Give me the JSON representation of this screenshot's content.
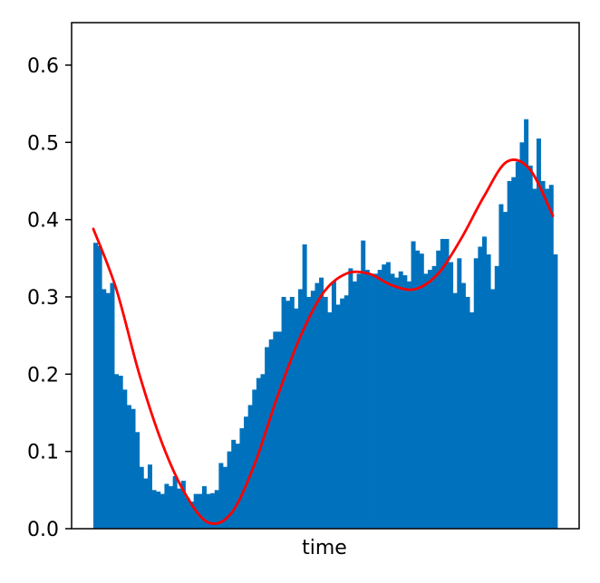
{
  "chart_data": {
    "type": "bar",
    "title": "",
    "xlabel": "time",
    "ylabel": "",
    "ylim": [
      0,
      0.655
    ],
    "yticks": [
      "0.0",
      "0.1",
      "0.2",
      "0.3",
      "0.4",
      "0.5",
      "0.6"
    ],
    "ytick_values": [
      0.0,
      0.1,
      0.2,
      0.3,
      0.4,
      0.5,
      0.6
    ],
    "xticks": [],
    "grid": false,
    "legend": "none",
    "bar_color": "#0072bd",
    "curve_color": "#ff0000",
    "series": [
      {
        "type": "bar",
        "values": [
          0.37,
          0.366,
          0.31,
          0.305,
          0.318,
          0.2,
          0.198,
          0.18,
          0.16,
          0.155,
          0.125,
          0.08,
          0.065,
          0.083,
          0.05,
          0.048,
          0.045,
          0.058,
          0.055,
          0.068,
          0.052,
          0.062,
          0.04,
          0.035,
          0.045,
          0.045,
          0.055,
          0.045,
          0.046,
          0.05,
          0.085,
          0.08,
          0.1,
          0.115,
          0.11,
          0.13,
          0.145,
          0.16,
          0.18,
          0.195,
          0.2,
          0.235,
          0.245,
          0.255,
          0.255,
          0.3,
          0.295,
          0.3,
          0.285,
          0.31,
          0.368,
          0.3,
          0.308,
          0.318,
          0.325,
          0.3,
          0.28,
          0.32,
          0.29,
          0.298,
          0.302,
          0.337,
          0.32,
          0.33,
          0.373,
          0.335,
          0.33,
          0.33,
          0.335,
          0.342,
          0.345,
          0.33,
          0.325,
          0.333,
          0.328,
          0.32,
          0.372,
          0.36,
          0.356,
          0.33,
          0.335,
          0.34,
          0.36,
          0.375,
          0.375,
          0.345,
          0.305,
          0.35,
          0.318,
          0.3,
          0.28,
          0.35,
          0.365,
          0.378,
          0.355,
          0.31,
          0.34,
          0.42,
          0.41,
          0.45,
          0.455,
          0.475,
          0.5,
          0.53,
          0.47,
          0.44,
          0.505,
          0.45,
          0.44,
          0.445,
          0.355
        ]
      },
      {
        "type": "line",
        "x": [
          0,
          0.05,
          0.1,
          0.15,
          0.2,
          0.25,
          0.3,
          0.35,
          0.4,
          0.45,
          0.5,
          0.55,
          0.6,
          0.65,
          0.7,
          0.75,
          0.8,
          0.85,
          0.9,
          0.95,
          1.0
        ],
        "values": [
          0.388,
          0.31,
          0.2,
          0.11,
          0.045,
          0.008,
          0.02,
          0.082,
          0.17,
          0.248,
          0.305,
          0.33,
          0.33,
          0.315,
          0.31,
          0.33,
          0.375,
          0.43,
          0.475,
          0.465,
          0.405
        ]
      }
    ]
  }
}
